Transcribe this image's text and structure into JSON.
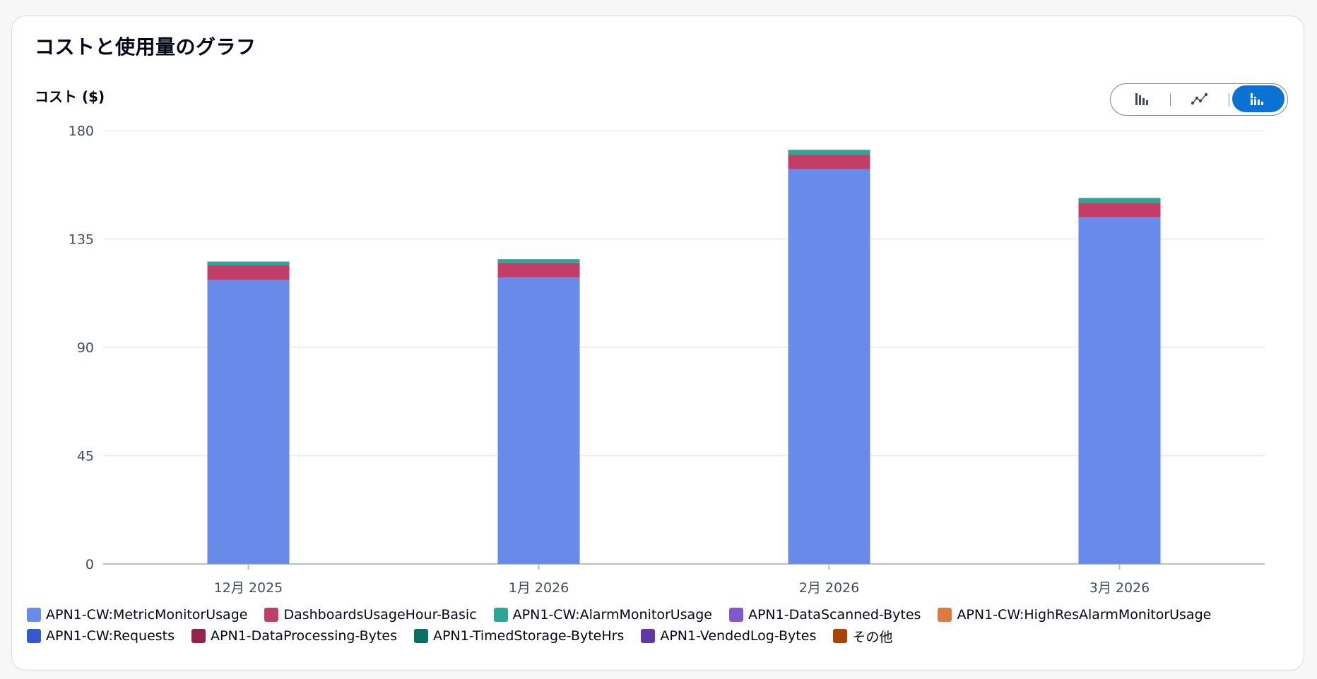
{
  "title": "コストと使用量のグラフ",
  "view_toggle": [
    {
      "name": "bar-chart-icon",
      "active": false
    },
    {
      "name": "line-chart-icon",
      "active": false
    },
    {
      "name": "stacked-bar-chart-icon",
      "active": true
    }
  ],
  "colors": {
    "active": "#0972d3",
    "grid": "#e9ebed",
    "axis": "#b6bec9"
  },
  "chart_data": {
    "type": "bar",
    "stacked": true,
    "ylabel": "コスト ($)",
    "xlabel": "",
    "ylim": [
      0,
      180
    ],
    "yticks": [
      0,
      45,
      90,
      135,
      180
    ],
    "grid": true,
    "legend_position": "bottom",
    "categories": [
      "12月 2025",
      "1月 2026",
      "2月 2026",
      "3月 2026"
    ],
    "series": [
      {
        "name": "APN1-CW:MetricMonitorUsage",
        "color": "#688ae8",
        "values": [
          118,
          119,
          164,
          144
        ]
      },
      {
        "name": "DashboardsUsageHour-Basic",
        "color": "#c33d69",
        "values": [
          6,
          6,
          6,
          6
        ]
      },
      {
        "name": "APN1-CW:AlarmMonitorUsage",
        "color": "#2ea597",
        "values": [
          1.6,
          1.6,
          2,
          2
        ]
      },
      {
        "name": "APN1-DataScanned-Bytes",
        "color": "#8456ce",
        "values": [
          0,
          0,
          0,
          0
        ]
      },
      {
        "name": "APN1-CW:HighResAlarmMonitorUsage",
        "color": "#e07941",
        "values": [
          0,
          0,
          0,
          0
        ]
      },
      {
        "name": "APN1-CW:Requests",
        "color": "#3759ce",
        "values": [
          0,
          0,
          0,
          0
        ]
      },
      {
        "name": "APN1-DataProcessing-Bytes",
        "color": "#962249",
        "values": [
          0,
          0,
          0,
          0
        ]
      },
      {
        "name": "APN1-TimedStorage-ByteHrs",
        "color": "#096f64",
        "values": [
          0,
          0,
          0,
          0
        ]
      },
      {
        "name": "APN1-VendedLog-Bytes",
        "color": "#6237a7",
        "values": [
          0,
          0,
          0,
          0
        ]
      },
      {
        "name": "その他",
        "color": "#a84401",
        "values": [
          0,
          0,
          0,
          0
        ]
      }
    ]
  }
}
